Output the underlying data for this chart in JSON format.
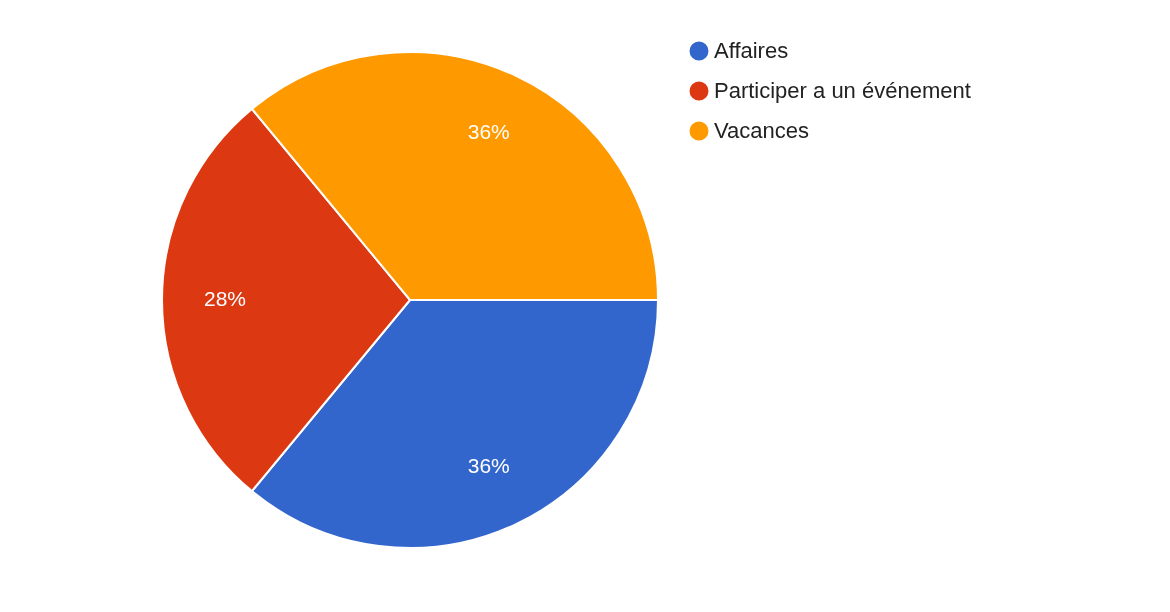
{
  "chart_data": {
    "type": "pie",
    "categories": [
      "Affaires",
      "Participer a un événement",
      "Vacances"
    ],
    "values": [
      36,
      28,
      36
    ],
    "colors": [
      "#3366cc",
      "#dc3912",
      "#ff9900"
    ],
    "value_labels": [
      "36%",
      "28%",
      "36%"
    ],
    "legend": "top right"
  }
}
